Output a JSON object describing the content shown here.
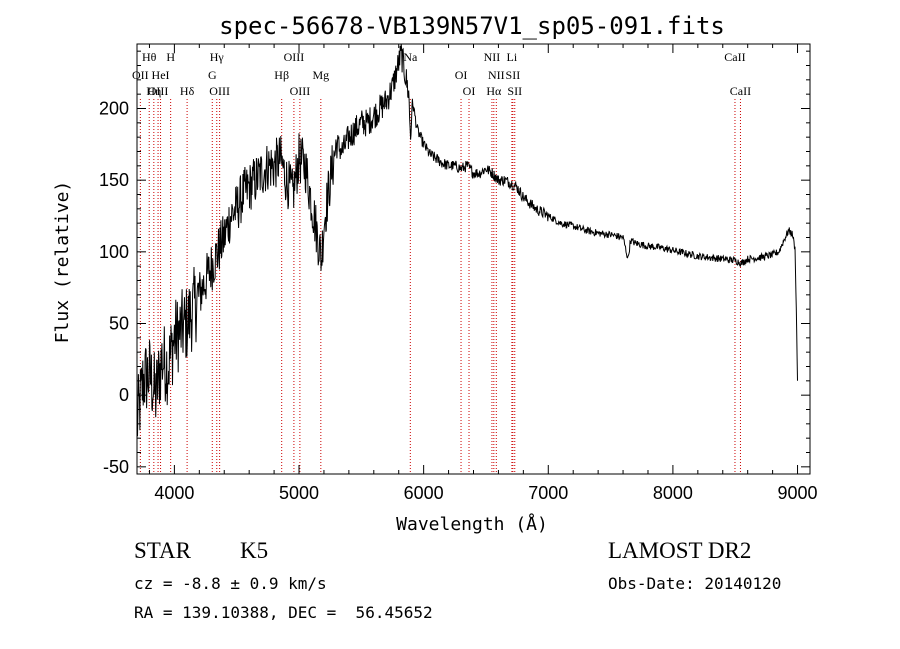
{
  "chart_data": {
    "type": "line",
    "title": "spec-56678-VB139N57V1_sp05-091.fits",
    "xlabel": "Wavelength (Å)",
    "ylabel": "Flux (relative)",
    "xlim": [
      3700,
      9100
    ],
    "ylim": [
      -55,
      245
    ],
    "xticks": [
      4000,
      5000,
      6000,
      7000,
      8000,
      9000
    ],
    "yticks": [
      -50,
      0,
      50,
      100,
      150,
      200
    ],
    "grid": false,
    "line_color": "#000000",
    "marker_color": "#cc0000",
    "series": [
      {
        "x": [
          3700,
          3750,
          3800,
          3850,
          3900,
          3950,
          4000,
          4050,
          4100,
          4150,
          4200,
          4250,
          4300,
          4350,
          4400,
          4450,
          4500,
          4550,
          4600,
          4650,
          4700,
          4750,
          4800,
          4850,
          4900,
          4950,
          5000,
          5050,
          5100,
          5150,
          5180,
          5200,
          5250,
          5300,
          5350,
          5400,
          5450,
          5500,
          5550,
          5600,
          5650,
          5700,
          5750,
          5800,
          5820,
          5850,
          5880,
          5895,
          5910,
          5950,
          6000,
          6050,
          6100,
          6150,
          6200,
          6250,
          6300,
          6350,
          6400,
          6450,
          6500,
          6550,
          6600,
          6650,
          6700,
          6750,
          6800,
          6900,
          7000,
          7100,
          7200,
          7300,
          7400,
          7500,
          7600,
          7640,
          7660,
          7700,
          7800,
          7900,
          8000,
          8100,
          8200,
          8300,
          8400,
          8500,
          8550,
          8600,
          8700,
          8800,
          8850,
          8900,
          8930,
          8960,
          8980,
          8990,
          9000
        ],
        "y": [
          -20,
          10,
          15,
          0,
          25,
          20,
          40,
          45,
          50,
          60,
          70,
          80,
          90,
          100,
          110,
          125,
          130,
          140,
          145,
          150,
          155,
          160,
          160,
          165,
          150,
          140,
          165,
          160,
          135,
          110,
          95,
          120,
          150,
          175,
          170,
          180,
          185,
          190,
          190,
          195,
          200,
          205,
          215,
          232,
          238,
          225,
          210,
          180,
          205,
          185,
          175,
          168,
          165,
          162,
          160,
          160,
          158,
          160,
          155,
          155,
          158,
          155,
          150,
          150,
          148,
          145,
          138,
          130,
          125,
          120,
          118,
          115,
          113,
          112,
          110,
          95,
          108,
          106,
          104,
          103,
          101,
          99,
          97,
          96,
          95,
          94,
          92,
          95,
          96,
          98,
          100,
          110,
          115,
          112,
          102,
          60,
          10
        ]
      }
    ],
    "line_markers": {
      "top_row": [
        {
          "label": "Hθ",
          "x": 3798
        },
        {
          "label": "H",
          "x": 3970
        },
        {
          "label": "Hγ",
          "x": 4340
        },
        {
          "label": "OIII",
          "x": 4959
        },
        {
          "label": "Na",
          "x": 5893
        },
        {
          "label": "NII",
          "x": 6548
        },
        {
          "label": "Li",
          "x": 6708
        },
        {
          "label": "CaII",
          "x": 8498
        }
      ],
      "second_row": [
        {
          "label": "OII",
          "x": 3727
        },
        {
          "label": "HeI",
          "x": 3889
        },
        {
          "label": "G",
          "x": 4304
        },
        {
          "label": "Hβ",
          "x": 4861
        },
        {
          "label": "Mg",
          "x": 5175
        },
        {
          "label": "OI",
          "x": 6300
        },
        {
          "label": "NII",
          "x": 6583
        },
        {
          "label": "SII",
          "x": 6716
        }
      ],
      "third_row": [
        {
          "label": "OIII",
          "x": 3869
        },
        {
          "label": "Hη",
          "x": 3835
        },
        {
          "label": "Hδ",
          "x": 4102
        },
        {
          "label": "OIII",
          "x": 4363
        },
        {
          "label": "OIII",
          "x": 5007
        },
        {
          "label": "OI",
          "x": 6364
        },
        {
          "label": "Hα",
          "x": 6563
        },
        {
          "label": "SII",
          "x": 6731
        },
        {
          "label": "CaII",
          "x": 8542
        }
      ]
    }
  },
  "info": {
    "class_label": "STAR",
    "subclass_label": "K5",
    "survey": "LAMOST DR2",
    "velocity": "cz = -8.8 ± 0.9 km/s",
    "obs_date": "Obs-Date: 20140120",
    "coordinates": "RA = 139.10388, DEC =  56.45652"
  }
}
